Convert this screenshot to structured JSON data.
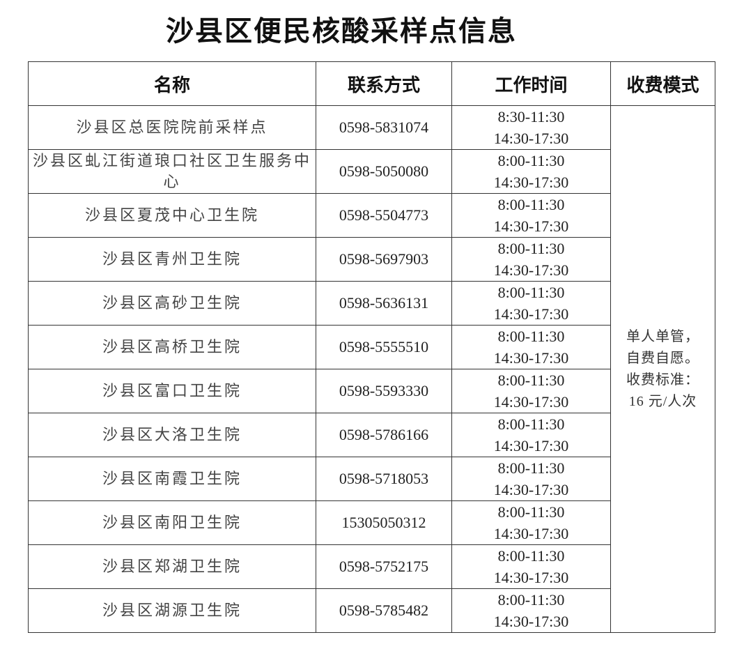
{
  "title": "沙县区便民核酸采样点信息",
  "headers": [
    "名称",
    "联系方式",
    "工作时间",
    "收费模式"
  ],
  "rows": [
    {
      "name": "沙县区总医院院前采样点",
      "phone": "0598-5831074",
      "hours": [
        "8:30-11:30",
        "14:30-17:30"
      ]
    },
    {
      "name": "沙县区虬江街道琅口社区卫生服务中心",
      "phone": "0598-5050080",
      "hours": [
        "8:00-11:30",
        "14:30-17:30"
      ]
    },
    {
      "name": "沙县区夏茂中心卫生院",
      "phone": "0598-5504773",
      "hours": [
        "8:00-11:30",
        "14:30-17:30"
      ]
    },
    {
      "name": "沙县区青州卫生院",
      "phone": "0598-5697903",
      "hours": [
        "8:00-11:30",
        "14:30-17:30"
      ]
    },
    {
      "name": "沙县区高砂卫生院",
      "phone": "0598-5636131",
      "hours": [
        "8:00-11:30",
        "14:30-17:30"
      ]
    },
    {
      "name": "沙县区高桥卫生院",
      "phone": "0598-5555510",
      "hours": [
        "8:00-11:30",
        "14:30-17:30"
      ]
    },
    {
      "name": "沙县区富口卫生院",
      "phone": "0598-5593330",
      "hours": [
        "8:00-11:30",
        "14:30-17:30"
      ]
    },
    {
      "name": "沙县区大洛卫生院",
      "phone": "0598-5786166",
      "hours": [
        "8:00-11:30",
        "14:30-17:30"
      ]
    },
    {
      "name": "沙县区南霞卫生院",
      "phone": "0598-5718053",
      "hours": [
        "8:00-11:30",
        "14:30-17:30"
      ]
    },
    {
      "name": "沙县区南阳卫生院",
      "phone": "15305050312",
      "hours": [
        "8:00-11:30",
        "14:30-17:30"
      ]
    },
    {
      "name": "沙县区郑湖卫生院",
      "phone": "0598-5752175",
      "hours": [
        "8:00-11:30",
        "14:30-17:30"
      ]
    },
    {
      "name": "沙县区湖源卫生院",
      "phone": "0598-5785482",
      "hours": [
        "8:00-11:30",
        "14:30-17:30"
      ]
    }
  ],
  "fee": [
    "单人单管，",
    "自费自愿。",
    "收费标准：",
    "16 元/人次"
  ]
}
